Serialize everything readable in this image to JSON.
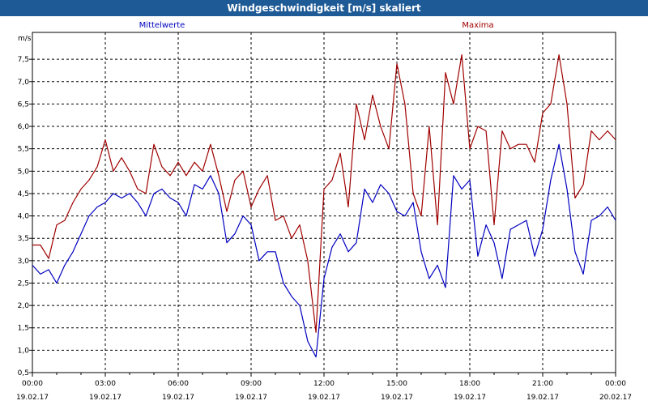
{
  "window": {
    "title": "Windgeschwindigkeit [m/s] skaliert"
  },
  "chart_data": {
    "type": "line",
    "ylabel": "m/s",
    "ylim": [
      0.5,
      8.1
    ],
    "yticks": [
      "0,5",
      "1,0",
      "1,5",
      "2,0",
      "2,5",
      "3,0",
      "3,5",
      "4,0",
      "4,5",
      "5,0",
      "5,5",
      "6,0",
      "6,5",
      "7,0",
      "7,5"
    ],
    "xticks": [
      {
        "time": "00:00",
        "date": "19.02.17"
      },
      {
        "time": "03:00",
        "date": "19.02.17"
      },
      {
        "time": "06:00",
        "date": "19.02.17"
      },
      {
        "time": "09:00",
        "date": "19.02.17"
      },
      {
        "time": "12:00",
        "date": "19.02.17"
      },
      {
        "time": "15:00",
        "date": "19.02.17"
      },
      {
        "time": "18:00",
        "date": "19.02.17"
      },
      {
        "time": "21:00",
        "date": "19.02.17"
      },
      {
        "time": "00:00",
        "date": "20.02.17"
      }
    ],
    "grid": true,
    "series": [
      {
        "name": "Mittelwerte",
        "color": "#0000c0",
        "x_hours": [
          0,
          0.33,
          0.67,
          1.0,
          1.33,
          1.67,
          2.0,
          2.33,
          2.67,
          3.0,
          3.33,
          3.67,
          4.0,
          4.33,
          4.67,
          5.0,
          5.33,
          5.67,
          6.0,
          6.33,
          6.67,
          7.0,
          7.33,
          7.67,
          8.0,
          8.33,
          8.67,
          9.0,
          9.33,
          9.67,
          10.0,
          10.33,
          10.67,
          11.0,
          11.33,
          11.67,
          12.0,
          12.33,
          12.67,
          13.0,
          13.33,
          13.67,
          14.0,
          14.33,
          14.67,
          15.0,
          15.33,
          15.67,
          16.0,
          16.33,
          16.67,
          17.0,
          17.33,
          17.67,
          18.0,
          18.33,
          18.67,
          19.0,
          19.33,
          19.67,
          20.0,
          20.33,
          20.67,
          21.0,
          21.33,
          21.67,
          22.0,
          22.33,
          22.67,
          23.0,
          23.33,
          23.67,
          24.0
        ],
        "values": [
          2.9,
          2.7,
          2.8,
          2.5,
          2.9,
          3.2,
          3.6,
          4.0,
          4.2,
          4.3,
          4.5,
          4.4,
          4.5,
          4.3,
          4.0,
          4.5,
          4.6,
          4.4,
          4.3,
          4.0,
          4.7,
          4.6,
          4.9,
          4.5,
          3.4,
          3.6,
          4.0,
          3.8,
          3.0,
          3.2,
          3.2,
          2.5,
          2.2,
          2.0,
          1.2,
          0.85,
          2.6,
          3.3,
          3.6,
          3.2,
          3.4,
          4.6,
          4.3,
          4.7,
          4.5,
          4.1,
          4.0,
          4.3,
          3.2,
          2.6,
          2.9,
          2.4,
          4.9,
          4.6,
          4.8,
          3.1,
          3.8,
          3.4,
          2.6,
          3.7,
          3.8,
          3.9,
          3.1,
          3.7,
          4.8,
          5.6,
          4.6,
          3.2,
          2.7,
          3.9,
          4.0,
          4.2,
          3.9
        ]
      },
      {
        "name": "Maxima",
        "color": "#a00000",
        "x_hours": [
          0,
          0.33,
          0.67,
          1.0,
          1.33,
          1.67,
          2.0,
          2.33,
          2.67,
          3.0,
          3.33,
          3.67,
          4.0,
          4.33,
          4.67,
          5.0,
          5.33,
          5.67,
          6.0,
          6.33,
          6.67,
          7.0,
          7.33,
          7.67,
          8.0,
          8.33,
          8.67,
          9.0,
          9.33,
          9.67,
          10.0,
          10.33,
          10.67,
          11.0,
          11.33,
          11.67,
          12.0,
          12.33,
          12.67,
          13.0,
          13.33,
          13.67,
          14.0,
          14.33,
          14.67,
          15.0,
          15.33,
          15.67,
          16.0,
          16.33,
          16.67,
          17.0,
          17.33,
          17.67,
          18.0,
          18.33,
          18.67,
          19.0,
          19.33,
          19.67,
          20.0,
          20.33,
          20.67,
          21.0,
          21.33,
          21.67,
          22.0,
          22.33,
          22.67,
          23.0,
          23.33,
          23.67,
          24.0
        ],
        "values": [
          3.35,
          3.35,
          3.05,
          3.8,
          3.9,
          4.3,
          4.6,
          4.8,
          5.1,
          5.7,
          5.0,
          5.3,
          5.0,
          4.6,
          4.5,
          5.6,
          5.1,
          4.9,
          5.2,
          4.9,
          5.2,
          5.0,
          5.6,
          4.9,
          4.1,
          4.8,
          5.0,
          4.2,
          4.6,
          4.9,
          3.9,
          4.0,
          3.5,
          3.8,
          3.0,
          1.4,
          4.6,
          4.8,
          5.4,
          4.2,
          6.5,
          5.7,
          6.7,
          6.0,
          5.5,
          7.4,
          6.5,
          4.5,
          4.0,
          6.0,
          3.8,
          7.2,
          6.5,
          7.6,
          5.5,
          6.0,
          5.9,
          3.8,
          5.9,
          5.5,
          5.6,
          5.6,
          5.2,
          6.3,
          6.5,
          7.6,
          6.5,
          4.4,
          4.7,
          5.9,
          5.7,
          5.9,
          5.7
        ]
      }
    ]
  }
}
